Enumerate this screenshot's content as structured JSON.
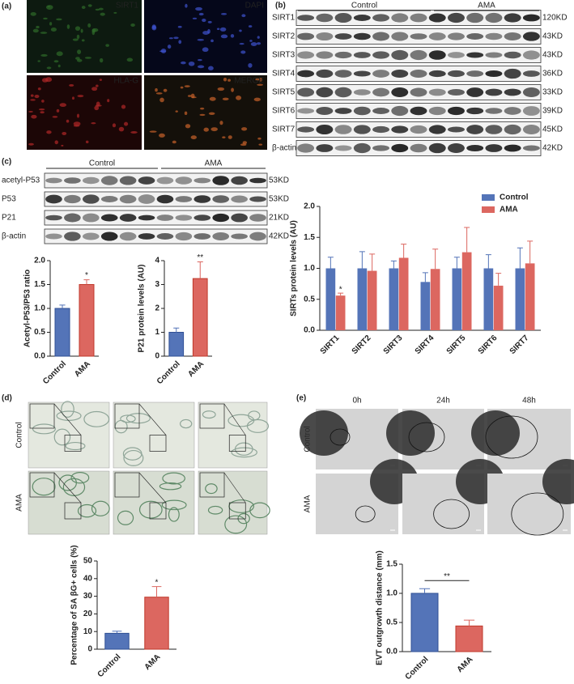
{
  "panel_letters": [
    "(a)",
    "(b)",
    "(c)",
    "(d)",
    "(e)"
  ],
  "panel_a": {
    "labels": [
      "SIRT1",
      "DAPI",
      "HLA-G",
      "MERGE"
    ]
  },
  "panel_b": {
    "groups": [
      "Control",
      "AMA"
    ],
    "rows": [
      "SIRT1",
      "SIRT2",
      "SIRT3",
      "SIRT4",
      "SIRT5",
      "SIRT6",
      "SIRT7",
      "β-actin"
    ],
    "sizes": [
      "120KD",
      "43KD",
      "43KD",
      "36KD",
      "33KD",
      "39KD",
      "45KD",
      "42KD"
    ]
  },
  "panel_c": {
    "groups": [
      "Control",
      "AMA"
    ],
    "rows": [
      "acetyl-P53",
      "P53",
      "P21",
      "β-actin"
    ],
    "sizes": [
      "53KD",
      "53KD",
      "21KD",
      "42KD"
    ]
  },
  "panel_d": {
    "rows": [
      "Control",
      "AMA"
    ]
  },
  "panel_e": {
    "columns": [
      "0h",
      "24h",
      "48h"
    ],
    "rows": [
      "Control",
      "AMA"
    ]
  },
  "chart_data": [
    {
      "type": "bar",
      "y_label": "Acetyl-P53/P53 ratio",
      "categories": [
        "Control",
        "AMA"
      ],
      "values": [
        1.0,
        1.5
      ],
      "errors": [
        0.07,
        0.1
      ],
      "colors": [
        "#5474b8",
        "#dc6760"
      ],
      "annotation": "*",
      "ylim": [
        0,
        2
      ],
      "yticks": [
        {
          "value": 0,
          "label": "0.0"
        },
        0.5,
        {
          "value": 1,
          "label": "1.0"
        },
        1.5,
        {
          "value": 2,
          "label": "2.0"
        }
      ]
    },
    {
      "type": "bar",
      "y_label": "P21 protein levels (AU)",
      "categories": [
        "Control",
        "AMA"
      ],
      "values": [
        1.0,
        3.25
      ],
      "errors": [
        0.18,
        0.7
      ],
      "colors": [
        "#5474b8",
        "#dc6760"
      ],
      "annotation": "**",
      "ylim": [
        0,
        4
      ],
      "yticks": [
        0,
        1,
        2,
        3,
        4
      ]
    },
    {
      "type": "grouped-bar",
      "y_label": "SIRTs protein levels (AU)",
      "categories": [
        "SIRT1",
        "SIRT2",
        "SIRT3",
        "SIRT4",
        "SIRT5",
        "SIRT6",
        "SIRT7"
      ],
      "series": [
        {
          "name": "Control",
          "color": "#5474b8",
          "values": [
            1.0,
            1.0,
            1.0,
            0.78,
            1.0,
            1.0,
            1.0
          ],
          "errors": [
            0.18,
            0.27,
            0.12,
            0.15,
            0.18,
            0.22,
            0.33
          ]
        },
        {
          "name": "AMA",
          "color": "#dc6760",
          "values": [
            0.56,
            0.96,
            1.17,
            0.99,
            1.26,
            0.72,
            1.08
          ],
          "errors": [
            0.04,
            0.27,
            0.22,
            0.32,
            0.4,
            0.2,
            0.36
          ]
        }
      ],
      "annotation": "*",
      "legend": "upper-right",
      "ylim": [
        0,
        2
      ],
      "yticks": [
        {
          "value": 0,
          "label": "0.0"
        },
        0.5,
        {
          "value": 1,
          "label": "1.0"
        },
        1.5,
        {
          "value": 2,
          "label": "2.0"
        }
      ]
    },
    {
      "type": "bar",
      "y_label": "Percentage of SA βG+ cells (%)",
      "categories": [
        "Control",
        "AMA"
      ],
      "values": [
        9,
        29.5
      ],
      "errors": [
        1.2,
        6
      ],
      "colors": [
        "#5474b8",
        "#dc6760"
      ],
      "annotation": "*",
      "ylim": [
        0,
        50
      ],
      "yticks": [
        0,
        10,
        20,
        30,
        40,
        50
      ]
    },
    {
      "type": "bar",
      "y_label": "EVT outgrowth distance (mm)",
      "categories": [
        "Control",
        "AMA"
      ],
      "values": [
        1.0,
        0.44
      ],
      "errors": [
        0.08,
        0.1
      ],
      "colors": [
        "#5474b8",
        "#dc6760"
      ],
      "annotation": "**",
      "bracket": true,
      "ylim": [
        0,
        1.5
      ],
      "yticks": [
        {
          "value": 0,
          "label": "0.0"
        },
        0.5,
        {
          "value": 1,
          "label": "1.0"
        },
        1.5
      ]
    }
  ]
}
